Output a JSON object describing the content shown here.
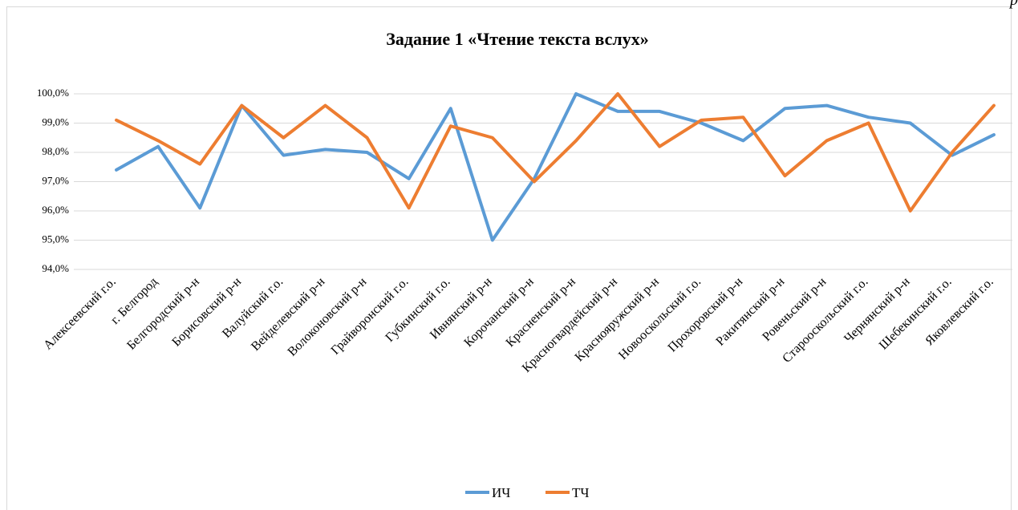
{
  "chart_data": {
    "type": "line",
    "title": "Задание 1 «Чтение текста вслух»",
    "annotation": "р",
    "categories": [
      "Алексеевский г.о.",
      "г. Белгород",
      "Белгородский р-н",
      "Борисовский р-н",
      "Валуйский г.о.",
      "Вейделевский р-н",
      "Волоконовский р-н",
      "Грайворонский г.о.",
      "Губкинский г.о.",
      "Ивнянский р-н",
      "Корочанский р-н",
      "Красненский р-н",
      "Красногвардейский р-н",
      "Краснояружский р-н",
      "Новооскольский г.о.",
      "Прохоровский р-н",
      "Ракитянский р-н",
      "Ровеньский р-н",
      "Старооскольский г.о.",
      "Чернянский р-н",
      "Шебекинский г.о.",
      "Яковлевский г.о."
    ],
    "series": [
      {
        "name": "ИЧ",
        "color": "#5b9bd5",
        "values": [
          97.4,
          98.2,
          96.1,
          99.6,
          97.9,
          98.1,
          98.0,
          97.1,
          99.5,
          95.0,
          97.1,
          100.0,
          99.4,
          99.4,
          99.0,
          98.4,
          99.5,
          99.6,
          99.2,
          99.0,
          97.9,
          98.6
        ]
      },
      {
        "name": "ТЧ",
        "color": "#ed7d31",
        "values": [
          99.1,
          98.4,
          97.6,
          99.6,
          98.5,
          99.6,
          98.5,
          96.1,
          98.9,
          98.5,
          97.0,
          98.4,
          100.0,
          98.2,
          99.1,
          99.2,
          97.2,
          98.4,
          99.0,
          96.0,
          98.0,
          99.6
        ]
      }
    ],
    "ylim": [
      94,
      100
    ],
    "yticks": [
      {
        "value": 94,
        "label": "94,0%"
      },
      {
        "value": 95,
        "label": "95,0%"
      },
      {
        "value": 96,
        "label": "96,0%"
      },
      {
        "value": 97,
        "label": "97,0%"
      },
      {
        "value": 98,
        "label": "98,0%"
      },
      {
        "value": 99,
        "label": "99,0%"
      },
      {
        "value": 100,
        "label": "100,0%"
      }
    ],
    "grid": true,
    "legend": "bottom"
  }
}
